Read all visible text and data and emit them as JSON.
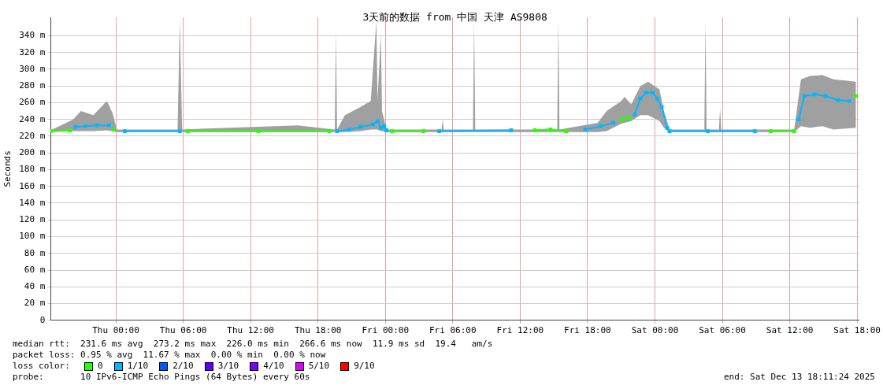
{
  "chart_data": {
    "type": "line",
    "title": "3天前的数据 from 中国 天津 AS9808",
    "ylabel": "Seconds",
    "x": [
      "2025-12-10T18:12",
      "2025-12-10T19:54",
      "2025-12-10T20:24",
      "2025-12-10T21:18",
      "2025-12-10T22:18",
      "2025-12-10T23:24",
      "2025-12-10T23:48",
      "2025-12-11T00:48",
      "2025-12-11T05:42",
      "2025-12-11T06:24",
      "2025-12-11T12:42",
      "2025-12-11T19:00",
      "2025-12-11T19:42",
      "2025-12-11T20:48",
      "2025-12-11T21:48",
      "2025-12-11T22:54",
      "2025-12-11T23:18",
      "2025-12-11T23:36",
      "2025-12-11T23:54",
      "2025-12-12T00:06",
      "2025-12-12T00:36",
      "2025-12-12T03:24",
      "2025-12-12T04:48",
      "2025-12-12T11:12",
      "2025-12-12T13:18",
      "2025-12-12T14:42",
      "2025-12-12T16:06",
      "2025-12-12T17:48",
      "2025-12-12T19:12",
      "2025-12-12T20:18",
      "2025-12-12T21:00",
      "2025-12-12T21:42",
      "2025-12-12T22:12",
      "2025-12-12T22:42",
      "2025-12-12T23:12",
      "2025-12-12T23:48",
      "2025-12-13T00:12",
      "2025-12-13T00:36",
      "2025-12-13T01:06",
      "2025-12-13T01:18",
      "2025-12-13T04:42",
      "2025-12-13T08:54",
      "2025-12-13T10:18",
      "2025-12-13T12:24",
      "2025-12-13T12:48",
      "2025-12-13T13:18",
      "2025-12-13T14:12",
      "2025-12-13T15:12",
      "2025-12-13T16:18",
      "2025-12-13T17:18",
      "2025-12-13T17:54"
    ],
    "xlim": [
      "2025-12-10T18:12",
      "2025-12-13T18:12"
    ],
    "xticks": [
      {
        "value": "2025-12-11T00:00",
        "label": "Thu 00:00"
      },
      {
        "value": "2025-12-11T06:00",
        "label": "Thu 06:00"
      },
      {
        "value": "2025-12-11T12:00",
        "label": "Thu 12:00"
      },
      {
        "value": "2025-12-11T18:00",
        "label": "Thu 18:00"
      },
      {
        "value": "2025-12-12T00:00",
        "label": "Fri 00:00"
      },
      {
        "value": "2025-12-12T06:00",
        "label": "Fri 06:00"
      },
      {
        "value": "2025-12-12T12:00",
        "label": "Fri 12:00"
      },
      {
        "value": "2025-12-12T18:00",
        "label": "Fri 18:00"
      },
      {
        "value": "2025-12-13T00:00",
        "label": "Sat 00:00"
      },
      {
        "value": "2025-12-13T06:00",
        "label": "Sat 06:00"
      },
      {
        "value": "2025-12-13T12:00",
        "label": "Sat 12:00"
      },
      {
        "value": "2025-12-13T18:00",
        "label": "Sat 18:00"
      }
    ],
    "ylim": [
      0,
      362
    ],
    "yticks": [
      0,
      {
        "value": 20,
        "label": "20 m"
      },
      {
        "value": 40,
        "label": "40 m"
      },
      {
        "value": 60,
        "label": "60 m"
      },
      {
        "value": 80,
        "label": "80 m"
      },
      {
        "value": 100,
        "label": "100 m"
      },
      {
        "value": 120,
        "label": "120 m"
      },
      {
        "value": 140,
        "label": "140 m"
      },
      {
        "value": 160,
        "label": "160 m"
      },
      {
        "value": 180,
        "label": "180 m"
      },
      {
        "value": 200,
        "label": "200 m"
      },
      {
        "value": 220,
        "label": "220 m"
      },
      {
        "value": 240,
        "label": "240 m"
      },
      {
        "value": 260,
        "label": "260 m"
      },
      {
        "value": 280,
        "label": "280 m"
      },
      {
        "value": 300,
        "label": "300 m"
      },
      {
        "value": 320,
        "label": "320 m"
      },
      {
        "value": 340,
        "label": "340 m"
      }
    ],
    "grid": true,
    "legend": "bottom",
    "legend_title": "loss color:",
    "marker": "square",
    "line_style": "solid",
    "series": [
      {
        "color": "#a0a0a0",
        "x": [
          "2025-12-10T18:12",
          "2025-12-10T20:12",
          "2025-12-10T20:54",
          "2025-12-10T22:00",
          "2025-12-10T23:12",
          "2025-12-10T23:42",
          "2025-12-11T00:06",
          "2025-12-11T05:30",
          "2025-12-11T05:42",
          "2025-12-11T05:54",
          "2025-12-11T16:12",
          "2025-12-11T19:30",
          "2025-12-11T19:36",
          "2025-12-11T19:42",
          "2025-12-11T20:24",
          "2025-12-11T21:48",
          "2025-12-11T22:42",
          "2025-12-11T23:12",
          "2025-12-11T23:18",
          "2025-12-11T23:36",
          "2025-12-11T23:42",
          "2025-12-12T00:06",
          "2025-12-12T05:00",
          "2025-12-12T05:06",
          "2025-12-12T05:12",
          "2025-12-12T07:48",
          "2025-12-12T07:54",
          "2025-12-12T08:00",
          "2025-12-12T15:18",
          "2025-12-12T15:24",
          "2025-12-12T15:30",
          "2025-12-12T18:54",
          "2025-12-12T19:42",
          "2025-12-12T21:00",
          "2025-12-12T21:18",
          "2025-12-12T21:54",
          "2025-12-12T22:42",
          "2025-12-12T23:24",
          "2025-12-13T00:24",
          "2025-12-13T00:48",
          "2025-12-13T01:18",
          "2025-12-13T04:24",
          "2025-12-13T04:30",
          "2025-12-13T04:36",
          "2025-12-13T05:42",
          "2025-12-13T05:48",
          "2025-12-13T05:54",
          "2025-12-13T12:24",
          "2025-12-13T13:00",
          "2025-12-13T13:48",
          "2025-12-13T14:54",
          "2025-12-13T15:54",
          "2025-12-13T17:54"
        ],
        "values": [
          null,
          null,
          null,
          null,
          null,
          null,
          null,
          null,
          null,
          null,
          null,
          null,
          null,
          null,
          null,
          null,
          null,
          null,
          null,
          null,
          null,
          null,
          null,
          null,
          null,
          null,
          null,
          null,
          null,
          null,
          null,
          null,
          null,
          null,
          null,
          null,
          null,
          null,
          null,
          null,
          null,
          null,
          null,
          null,
          null,
          null,
          null,
          null,
          null,
          null,
          null,
          null,
          null
        ],
        "lower": [
          225,
          226,
          226,
          226,
          227,
          226,
          225,
          225,
          225,
          225,
          225,
          225,
          225,
          225,
          225,
          226,
          228,
          228,
          228,
          226,
          226,
          225,
          225,
          225,
          225,
          225,
          225,
          225,
          225,
          225,
          225,
          225,
          226,
          235,
          236,
          238,
          245,
          245,
          238,
          230,
          225,
          225,
          225,
          225,
          225,
          225,
          225,
          225,
          232,
          230,
          232,
          228,
          230
        ],
        "upper": [
          227,
          240,
          250,
          245,
          262,
          248,
          228,
          228,
          358,
          228,
          233,
          228,
          345,
          228,
          245,
          255,
          262,
          358,
          262,
          342,
          250,
          228,
          228,
          240,
          228,
          228,
          358,
          228,
          228,
          358,
          228,
          236,
          250,
          262,
          267,
          258,
          280,
          285,
          276,
          250,
          228,
          228,
          358,
          228,
          228,
          253,
          228,
          228,
          288,
          292,
          293,
          288,
          285
        ]
      },
      {
        "name": "0",
        "color": "#26ff00",
        "values": [
          226,
          227,
          null,
          null,
          null,
          null,
          228,
          null,
          null,
          226,
          226,
          226,
          null,
          null,
          null,
          null,
          null,
          null,
          null,
          null,
          226,
          226,
          null,
          null,
          227,
          228,
          226,
          null,
          null,
          null,
          240,
          242,
          null,
          null,
          null,
          null,
          null,
          null,
          null,
          null,
          null,
          null,
          226,
          226,
          null,
          null,
          null,
          null,
          null,
          null,
          268
        ]
      },
      {
        "name": "1/10",
        "color": "#00b8ff",
        "values": [
          null,
          null,
          231,
          232,
          233,
          233,
          null,
          226,
          226,
          null,
          null,
          null,
          226,
          228,
          231,
          234,
          238,
          230,
          232,
          227,
          null,
          null,
          226,
          227,
          null,
          null,
          null,
          228,
          232,
          236,
          null,
          null,
          246,
          265,
          272,
          272,
          265,
          255,
          230,
          226,
          226,
          226,
          null,
          null,
          240,
          268,
          270,
          268,
          263,
          262,
          null
        ]
      },
      {
        "name": "2/10",
        "color": "#0059ff",
        "values": [
          null,
          null,
          null,
          null,
          null,
          null,
          null,
          null,
          null,
          null,
          null,
          null,
          null,
          null,
          null,
          null,
          null,
          null,
          null,
          null,
          null,
          null,
          null,
          null,
          null,
          null,
          null,
          null,
          null,
          null,
          null,
          null,
          null,
          null,
          null,
          null,
          null,
          null,
          null,
          null,
          null,
          null,
          null,
          null,
          null,
          null,
          null,
          null,
          null,
          null,
          null
        ]
      },
      {
        "name": "3/10",
        "color": "#5e00ff",
        "values": [
          null,
          null,
          null,
          null,
          null,
          null,
          null,
          null,
          null,
          null,
          null,
          null,
          null,
          null,
          null,
          null,
          null,
          null,
          null,
          null,
          null,
          null,
          null,
          null,
          null,
          null,
          null,
          null,
          null,
          null,
          null,
          null,
          null,
          null,
          null,
          null,
          null,
          null,
          null,
          null,
          null,
          null,
          null,
          null,
          null,
          null,
          null,
          null,
          null,
          null,
          null
        ]
      },
      {
        "name": "4/10",
        "color": "#7e00ff",
        "values": [
          null,
          null,
          null,
          null,
          null,
          null,
          null,
          null,
          null,
          null,
          null,
          null,
          null,
          null,
          null,
          null,
          null,
          null,
          null,
          null,
          null,
          null,
          null,
          null,
          null,
          null,
          null,
          null,
          null,
          null,
          null,
          null,
          null,
          null,
          null,
          null,
          null,
          null,
          null,
          null,
          null,
          null,
          null,
          null,
          null,
          null,
          null,
          null,
          null,
          null,
          null
        ]
      },
      {
        "name": "5/10",
        "color": "#dd00ff",
        "values": [
          null,
          null,
          null,
          null,
          null,
          null,
          null,
          null,
          null,
          null,
          null,
          null,
          null,
          null,
          null,
          null,
          null,
          null,
          null,
          null,
          null,
          null,
          null,
          null,
          null,
          null,
          null,
          null,
          null,
          null,
          null,
          null,
          null,
          null,
          null,
          null,
          null,
          null,
          null,
          null,
          null,
          null,
          null,
          null,
          null,
          null,
          null,
          null,
          null,
          null,
          null
        ]
      },
      {
        "name": "9/10",
        "color": "#ff0000",
        "values": [
          null,
          null,
          null,
          null,
          null,
          null,
          null,
          null,
          null,
          null,
          null,
          null,
          null,
          null,
          null,
          null,
          null,
          null,
          null,
          null,
          null,
          null,
          null,
          null,
          null,
          null,
          null,
          null,
          null,
          null,
          null,
          null,
          null,
          null,
          null,
          null,
          null,
          null,
          null,
          null,
          null,
          null,
          null,
          null,
          null,
          null,
          null,
          null,
          null,
          null,
          null
        ]
      }
    ],
    "annotations": [
      "median rtt:  231.6 ms avg  273.2 ms max  226.0 ms min  266.6 ms now  11.9 ms sd  19.4   am/s",
      "packet loss: 0.95 % avg  11.67 % max  0.00 % min  0.00 % now",
      "probe:       10 IPv6-ICMP Echo Pings (64 Bytes) every 60s",
      "end: Sat Dec 13 18:11:24 2025"
    ]
  }
}
